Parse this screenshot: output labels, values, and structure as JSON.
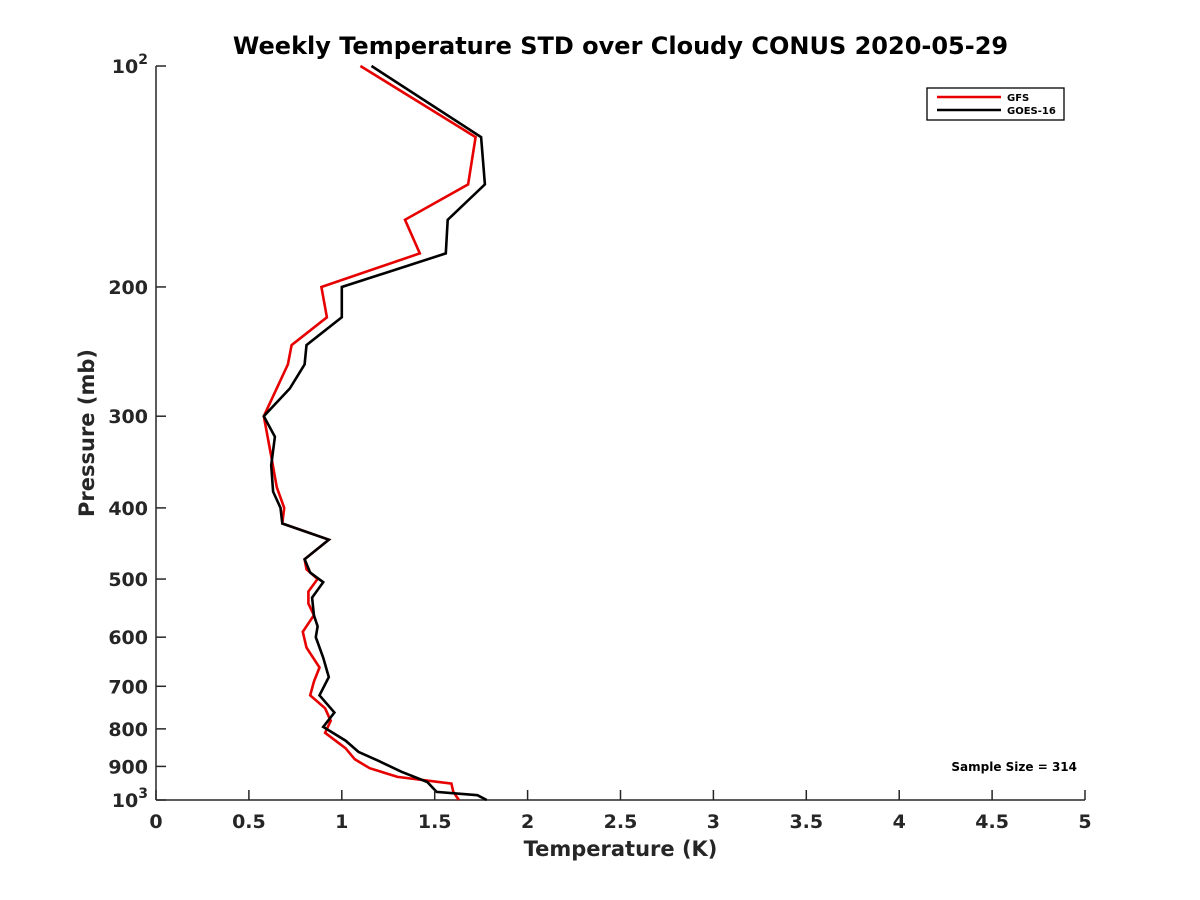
{
  "chart_data": {
    "type": "line",
    "title": "Weekly Temperature STD over Cloudy CONUS 2020-05-29",
    "xlabel": "Temperature (K)",
    "ylabel": "Pressure (mb)",
    "xlim": [
      0,
      5
    ],
    "ylim": [
      100,
      1000
    ],
    "y_scale": "log",
    "y_reversed": true,
    "grid": false,
    "legend_position": "top-right",
    "x_ticks": [
      0,
      0.5,
      1,
      1.5,
      2,
      2.5,
      3,
      3.5,
      4,
      4.5,
      5
    ],
    "x_tick_labels": [
      "0",
      "0.5",
      "1",
      "1.5",
      "2",
      "2.5",
      "3",
      "3.5",
      "4",
      "4.5",
      "5"
    ],
    "y_ticks": [
      100,
      200,
      300,
      400,
      500,
      600,
      700,
      800,
      900,
      1000
    ],
    "y_tick_labels": [
      {
        "base": "10",
        "exp": "2"
      },
      {
        "base": "200"
      },
      {
        "base": "300"
      },
      {
        "base": "400"
      },
      {
        "base": "500"
      },
      {
        "base": "600"
      },
      {
        "base": "700"
      },
      {
        "base": "800"
      },
      {
        "base": "900"
      },
      {
        "base": "10",
        "exp": "3"
      }
    ],
    "annotation": "Sample Size = 314",
    "series": [
      {
        "name": "GFS",
        "color": "#e60000",
        "points": [
          [
            1.1,
            100
          ],
          [
            1.72,
            125
          ],
          [
            1.68,
            145
          ],
          [
            1.34,
            162
          ],
          [
            1.42,
            180
          ],
          [
            0.89,
            200
          ],
          [
            0.92,
            220
          ],
          [
            0.73,
            240
          ],
          [
            0.71,
            255
          ],
          [
            0.58,
            300
          ],
          [
            0.62,
            340
          ],
          [
            0.65,
            375
          ],
          [
            0.69,
            400
          ],
          [
            0.68,
            420
          ],
          [
            0.93,
            442
          ],
          [
            0.8,
            470
          ],
          [
            0.81,
            485
          ],
          [
            0.87,
            500
          ],
          [
            0.82,
            520
          ],
          [
            0.82,
            540
          ],
          [
            0.85,
            560
          ],
          [
            0.79,
            590
          ],
          [
            0.81,
            620
          ],
          [
            0.88,
            660
          ],
          [
            0.85,
            690
          ],
          [
            0.83,
            720
          ],
          [
            0.91,
            750
          ],
          [
            0.94,
            780
          ],
          [
            0.91,
            810
          ],
          [
            1.02,
            850
          ],
          [
            1.07,
            880
          ],
          [
            1.15,
            905
          ],
          [
            1.3,
            930
          ],
          [
            1.59,
            950
          ],
          [
            1.6,
            975
          ],
          [
            1.63,
            1000
          ]
        ]
      },
      {
        "name": "GOES-16",
        "color": "#000000",
        "points": [
          [
            1.16,
            100
          ],
          [
            1.75,
            125
          ],
          [
            1.77,
            145
          ],
          [
            1.57,
            162
          ],
          [
            1.56,
            180
          ],
          [
            1.0,
            200
          ],
          [
            1.0,
            220
          ],
          [
            0.81,
            240
          ],
          [
            0.8,
            255
          ],
          [
            0.72,
            275
          ],
          [
            0.58,
            300
          ],
          [
            0.64,
            320
          ],
          [
            0.62,
            350
          ],
          [
            0.63,
            380
          ],
          [
            0.67,
            400
          ],
          [
            0.68,
            420
          ],
          [
            0.93,
            442
          ],
          [
            0.8,
            470
          ],
          [
            0.83,
            490
          ],
          [
            0.9,
            505
          ],
          [
            0.84,
            530
          ],
          [
            0.85,
            560
          ],
          [
            0.87,
            580
          ],
          [
            0.86,
            600
          ],
          [
            0.9,
            640
          ],
          [
            0.93,
            680
          ],
          [
            0.88,
            720
          ],
          [
            0.96,
            760
          ],
          [
            0.9,
            795
          ],
          [
            1.02,
            830
          ],
          [
            1.09,
            860
          ],
          [
            1.2,
            885
          ],
          [
            1.32,
            915
          ],
          [
            1.46,
            945
          ],
          [
            1.51,
            975
          ],
          [
            1.73,
            985
          ],
          [
            1.78,
            1000
          ]
        ]
      }
    ]
  }
}
